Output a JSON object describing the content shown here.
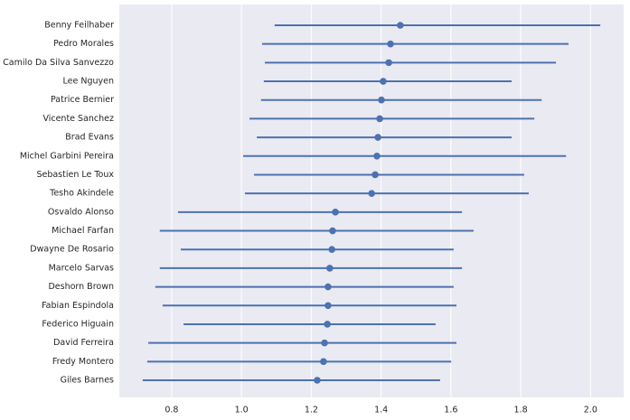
{
  "chart_data": {
    "type": "pointplot",
    "categories": [
      "Benny Feilhaber",
      "Pedro Morales",
      "Camilo Da Silva Sanvezzo",
      "Lee Nguyen",
      "Patrice Bernier",
      "Vicente Sanchez",
      "Brad Evans",
      "Michel Garbini Pereira",
      "Sebastien Le Toux",
      "Tesho Akindele",
      "Osvaldo Alonso",
      "Michael Farfan",
      "Dwayne De Rosario",
      "Marcelo Sarvas",
      "Deshorn Brown",
      "Fabian Espindola",
      "Federico Higuain",
      "David Ferreira",
      "Fredy Montero",
      "Giles Barnes"
    ],
    "values": [
      1.455,
      1.427,
      1.422,
      1.406,
      1.401,
      1.396,
      1.391,
      1.388,
      1.383,
      1.373,
      1.269,
      1.261,
      1.259,
      1.253,
      1.248,
      1.248,
      1.246,
      1.238,
      1.235,
      1.217
    ],
    "ci_low": [
      1.095,
      1.059,
      1.067,
      1.064,
      1.056,
      1.023,
      1.044,
      1.005,
      1.036,
      1.01,
      0.818,
      0.766,
      0.826,
      0.766,
      0.753,
      0.774,
      0.834,
      0.733,
      0.73,
      0.717
    ],
    "ci_high": [
      2.028,
      1.937,
      1.901,
      1.774,
      1.86,
      1.839,
      1.774,
      1.93,
      1.81,
      1.823,
      1.632,
      1.665,
      1.608,
      1.632,
      1.608,
      1.616,
      1.556,
      1.616,
      1.601,
      1.569
    ],
    "color": "#4c72b0",
    "xlim": [
      0.65,
      2.095
    ],
    "xticks": [
      {
        "value": 0.8,
        "label": "0.8"
      },
      {
        "value": 1.0,
        "label": "1.0"
      },
      {
        "value": 1.2,
        "label": "1.2"
      },
      {
        "value": 1.4,
        "label": "1.4"
      },
      {
        "value": 1.6,
        "label": "1.6"
      },
      {
        "value": 1.8,
        "label": "1.8"
      },
      {
        "value": 2.0,
        "label": "2.0"
      }
    ],
    "grid": true
  }
}
